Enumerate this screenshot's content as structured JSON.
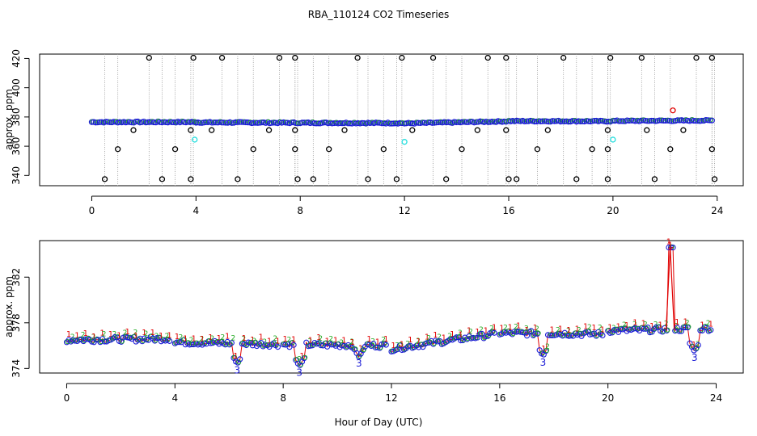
{
  "title": "RBA_110124  CO2 Timeseries",
  "xlabel": "Hour of Day (UTC)",
  "chart_data": [
    {
      "type": "scatter",
      "name": "co2-full-range",
      "ylabel": "approx. ppm",
      "xlim": [
        -2,
        25
      ],
      "ylim": [
        333,
        423
      ],
      "x_ticks": [
        0,
        4,
        8,
        12,
        16,
        20,
        24
      ],
      "y_ticks": [
        340,
        360,
        380,
        400,
        420
      ],
      "baseline_segments": [
        {
          "x": [
            0.0,
            4.0
          ],
          "y": [
            376.5,
            376.5
          ]
        },
        {
          "x": [
            4.0,
            7.9
          ],
          "y": [
            376.3,
            376.0
          ]
        },
        {
          "x": [
            8.0,
            11.9
          ],
          "y": [
            376.0,
            375.8
          ]
        },
        {
          "x": [
            12.0,
            15.9
          ],
          "y": [
            375.6,
            377.0
          ]
        },
        {
          "x": [
            16.0,
            19.9
          ],
          "y": [
            377.2,
            377.1
          ]
        },
        {
          "x": [
            20.0,
            23.8
          ],
          "y": [
            377.3,
            377.6
          ]
        }
      ],
      "outliers_high": [
        2.2,
        3.9,
        5.0,
        7.2,
        7.8,
        10.2,
        11.9,
        13.1,
        15.2,
        15.9,
        18.1,
        19.9,
        21.1,
        23.2,
        23.8
      ],
      "outliers_mid": [
        1.0,
        3.2,
        6.2,
        7.8,
        9.1,
        11.2,
        14.2,
        17.1,
        19.2,
        19.8,
        22.2,
        23.8
      ],
      "outliers_low": [
        0.5,
        2.7,
        3.8,
        5.6,
        7.9,
        8.5,
        10.6,
        11.7,
        13.6,
        16.0,
        16.3,
        18.6,
        19.8,
        21.6,
        23.9
      ],
      "high_value": 420.5,
      "mid_value": 358.0,
      "low_value": 337.5,
      "mid2_outliers": [
        1.6,
        3.8,
        4.6,
        6.8,
        7.8,
        9.7,
        12.3,
        14.8,
        15.9,
        17.5,
        19.8,
        21.3,
        22.7
      ],
      "mid2_value": 371.0,
      "cyan_points": [
        {
          "x": 3.95,
          "y": 364.5
        },
        {
          "x": 12.0,
          "y": 363.0
        },
        {
          "x": 20.0,
          "y": 364.5
        }
      ],
      "red_points": [
        {
          "x": 22.3,
          "y": 384.5
        }
      ],
      "legend": "none"
    },
    {
      "type": "scatter",
      "name": "co2-zoomed",
      "ylabel": "approx. ppm",
      "xlim": [
        -1,
        25
      ],
      "ylim": [
        373.6,
        385.2
      ],
      "x_ticks": [
        0,
        4,
        8,
        12,
        16,
        20,
        24
      ],
      "y_ticks": [
        374,
        378,
        382
      ],
      "baseline_segments": [
        {
          "x": [
            0.0,
            3.8
          ],
          "y": [
            376.5,
            376.6
          ]
        },
        {
          "x": [
            4.0,
            7.8
          ],
          "y": [
            376.3,
            376.1
          ]
        },
        {
          "x": [
            8.0,
            11.8
          ],
          "y": [
            376.1,
            376.0
          ]
        },
        {
          "x": [
            12.0,
            15.8
          ],
          "y": [
            375.7,
            377.0
          ]
        },
        {
          "x": [
            16.0,
            19.8
          ],
          "y": [
            377.1,
            377.0
          ]
        },
        {
          "x": [
            20.0,
            23.8
          ],
          "y": [
            377.3,
            377.5
          ]
        }
      ],
      "dips": [
        {
          "x": 6.3,
          "y": 374.4,
          "label": "3"
        },
        {
          "x": 8.6,
          "y": 374.2,
          "label": "3"
        },
        {
          "x": 10.8,
          "y": 375.0,
          "label": "3"
        },
        {
          "x": 17.6,
          "y": 375.1,
          "label": "3"
        },
        {
          "x": 23.2,
          "y": 375.5,
          "label": "3"
        }
      ],
      "spike": {
        "x": 22.3,
        "y": 384.6,
        "label": "1"
      },
      "flag_labels": [
        "1",
        "2",
        "3"
      ],
      "legend": "none"
    }
  ]
}
